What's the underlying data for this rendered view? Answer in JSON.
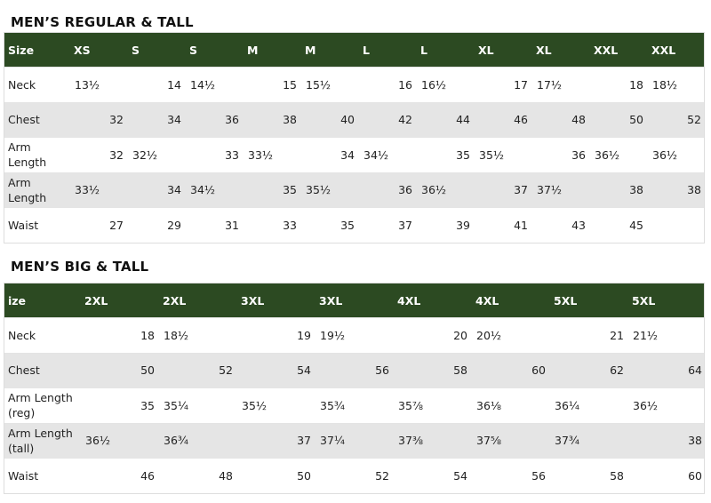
{
  "tables": [
    {
      "title": "MEN’S REGULAR & TALL",
      "header": [
        "Size",
        "XS",
        "S",
        "S",
        "M",
        "M",
        "L",
        "L",
        "XL",
        "XL",
        "XXL",
        "XXL"
      ],
      "rows": [
        {
          "label": "Neck",
          "cells": [
            "13½",
            "14",
            "14½",
            "15",
            "15½",
            "16",
            "16½",
            "17",
            "17½",
            "18",
            "18½"
          ]
        },
        {
          "label": "Chest",
          "cells": [
            "32",
            "34",
            "36",
            "38",
            "40",
            "42",
            "44",
            "46",
            "48",
            "50",
            "52"
          ]
        },
        {
          "label": "Arm Length",
          "cells": [
            "32",
            "32½",
            "33",
            "33½",
            "34",
            "34½",
            "35",
            "35½",
            "36",
            "36½",
            "36½"
          ]
        },
        {
          "label": "Arm Length",
          "cells": [
            "33½",
            "34",
            "34½",
            "35",
            "35½",
            "36",
            "36½",
            "37",
            "37½",
            "38",
            "38"
          ]
        },
        {
          "label": "Waist",
          "cells": [
            "27",
            "29",
            "31",
            "33",
            "35",
            "37",
            "39",
            "41",
            "43",
            "45",
            null
          ]
        }
      ]
    },
    {
      "title": "MEN’S BIG & TALL",
      "header": [
        "ize",
        "2XL",
        "2XL",
        "3XL",
        "3XL",
        "4XL",
        "4XL",
        "5XL",
        "5XL"
      ],
      "rows": [
        {
          "label": "Neck",
          "cells": [
            "18",
            "18½",
            "19",
            "19½",
            "20",
            "20½",
            "21",
            "21½"
          ]
        },
        {
          "label": "Chest",
          "cells": [
            "50",
            "52",
            "54",
            "56",
            "58",
            "60",
            "62",
            "64"
          ]
        },
        {
          "label": "Arm Length (reg)",
          "cells": [
            "35",
            "35¼",
            "35½",
            "35¾",
            "35⅞",
            "36⅛",
            "36¼",
            "36½"
          ]
        },
        {
          "label": "Arm Length (tall)",
          "cells": [
            "36½",
            "36¾",
            "37",
            "37¼",
            "37⅜",
            "37⅝",
            "37¾",
            "38"
          ]
        },
        {
          "label": "Waist",
          "cells": [
            "46",
            "48",
            "50",
            "52",
            "54",
            "56",
            "58",
            "60"
          ]
        }
      ]
    }
  ]
}
